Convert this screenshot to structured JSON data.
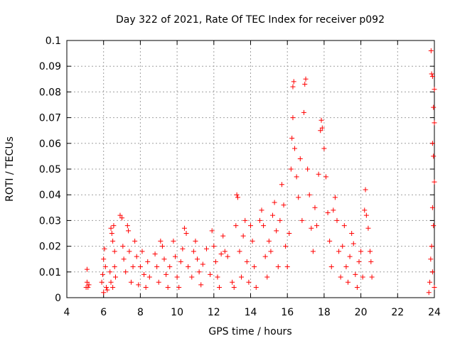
{
  "chart_data": {
    "type": "scatter",
    "title": "Day 322 of 2021, Rate Of TEC Index for receiver p092",
    "xlabel": "GPS time / hours",
    "ylabel": "ROTI / TECUs",
    "xlim": [
      4,
      24
    ],
    "ylim": [
      0,
      0.1
    ],
    "x_ticks": [
      4,
      6,
      8,
      10,
      12,
      14,
      16,
      18,
      20,
      22,
      24
    ],
    "x_tick_labels": [
      "4",
      "6",
      "8",
      "10",
      "12",
      "14",
      "16",
      "18",
      "20",
      "22",
      "24"
    ],
    "y_ticks": [
      0,
      0.01,
      0.02,
      0.03,
      0.04,
      0.05,
      0.06,
      0.07,
      0.08,
      0.09,
      0.1
    ],
    "y_tick_labels": [
      "0",
      "0.01",
      "0.02",
      "0.03",
      "0.04",
      "0.05",
      "0.06",
      "0.07",
      "0.08",
      "0.09",
      "0.1"
    ],
    "grid": true,
    "marker": "plus",
    "color": "#ff0000",
    "series": [
      {
        "name": "ROTI",
        "points": [
          [
            5.1,
            0.011
          ],
          [
            5.1,
            0.006
          ],
          [
            5.15,
            0.004
          ],
          [
            5.2,
            0.005
          ],
          [
            5.05,
            0.004
          ],
          [
            5.9,
            0.006
          ],
          [
            5.95,
            0.009
          ],
          [
            6.0,
            0.015
          ],
          [
            6.05,
            0.019
          ],
          [
            6.1,
            0.012
          ],
          [
            6.15,
            0.004
          ],
          [
            6.2,
            0.003
          ],
          [
            6.0,
            0.002
          ],
          [
            6.4,
            0.027
          ],
          [
            6.45,
            0.025
          ],
          [
            6.5,
            0.022
          ],
          [
            6.55,
            0.028
          ],
          [
            6.6,
            0.018
          ],
          [
            6.35,
            0.01
          ],
          [
            6.4,
            0.006
          ],
          [
            6.5,
            0.004
          ],
          [
            6.6,
            0.012
          ],
          [
            6.65,
            0.008
          ],
          [
            6.9,
            0.032
          ],
          [
            7.0,
            0.031
          ],
          [
            7.05,
            0.02
          ],
          [
            7.1,
            0.015
          ],
          [
            7.2,
            0.01
          ],
          [
            7.3,
            0.028
          ],
          [
            7.35,
            0.026
          ],
          [
            7.4,
            0.018
          ],
          [
            7.5,
            0.006
          ],
          [
            7.6,
            0.012
          ],
          [
            7.7,
            0.022
          ],
          [
            7.8,
            0.016
          ],
          [
            7.9,
            0.005
          ],
          [
            8.0,
            0.012
          ],
          [
            8.1,
            0.018
          ],
          [
            8.2,
            0.009
          ],
          [
            8.3,
            0.004
          ],
          [
            8.4,
            0.014
          ],
          [
            8.5,
            0.008
          ],
          [
            8.8,
            0.017
          ],
          [
            8.9,
            0.012
          ],
          [
            9.0,
            0.006
          ],
          [
            9.1,
            0.022
          ],
          [
            9.2,
            0.02
          ],
          [
            9.3,
            0.015
          ],
          [
            9.4,
            0.009
          ],
          [
            9.5,
            0.004
          ],
          [
            9.6,
            0.012
          ],
          [
            9.8,
            0.022
          ],
          [
            9.9,
            0.016
          ],
          [
            10.0,
            0.008
          ],
          [
            10.1,
            0.004
          ],
          [
            10.2,
            0.014
          ],
          [
            10.3,
            0.019
          ],
          [
            10.4,
            0.027
          ],
          [
            10.5,
            0.025
          ],
          [
            10.6,
            0.012
          ],
          [
            10.8,
            0.008
          ],
          [
            10.9,
            0.018
          ],
          [
            11.0,
            0.022
          ],
          [
            11.1,
            0.015
          ],
          [
            11.2,
            0.01
          ],
          [
            11.3,
            0.005
          ],
          [
            11.4,
            0.013
          ],
          [
            11.6,
            0.019
          ],
          [
            11.8,
            0.009
          ],
          [
            11.9,
            0.026
          ],
          [
            12.0,
            0.02
          ],
          [
            12.1,
            0.014
          ],
          [
            12.2,
            0.008
          ],
          [
            12.3,
            0.004
          ],
          [
            12.4,
            0.017
          ],
          [
            12.5,
            0.024
          ],
          [
            12.6,
            0.018
          ],
          [
            12.75,
            0.016
          ],
          [
            13.0,
            0.006
          ],
          [
            13.1,
            0.004
          ],
          [
            13.2,
            0.028
          ],
          [
            13.25,
            0.04
          ],
          [
            13.3,
            0.039
          ],
          [
            13.4,
            0.018
          ],
          [
            13.5,
            0.008
          ],
          [
            13.6,
            0.024
          ],
          [
            13.7,
            0.03
          ],
          [
            13.8,
            0.014
          ],
          [
            13.9,
            0.006
          ],
          [
            14.0,
            0.028
          ],
          [
            14.1,
            0.022
          ],
          [
            14.2,
            0.012
          ],
          [
            14.3,
            0.004
          ],
          [
            14.5,
            0.03
          ],
          [
            14.6,
            0.034
          ],
          [
            14.7,
            0.028
          ],
          [
            14.8,
            0.016
          ],
          [
            14.9,
            0.008
          ],
          [
            15.0,
            0.022
          ],
          [
            15.1,
            0.018
          ],
          [
            15.2,
            0.032
          ],
          [
            15.3,
            0.037
          ],
          [
            15.4,
            0.026
          ],
          [
            15.5,
            0.012
          ],
          [
            15.6,
            0.03
          ],
          [
            15.7,
            0.044
          ],
          [
            15.8,
            0.036
          ],
          [
            15.9,
            0.02
          ],
          [
            16.0,
            0.012
          ],
          [
            16.1,
            0.025
          ],
          [
            16.2,
            0.05
          ],
          [
            16.25,
            0.062
          ],
          [
            16.3,
            0.082
          ],
          [
            16.35,
            0.084
          ],
          [
            16.3,
            0.07
          ],
          [
            16.4,
            0.058
          ],
          [
            16.5,
            0.047
          ],
          [
            16.6,
            0.039
          ],
          [
            16.7,
            0.054
          ],
          [
            16.8,
            0.03
          ],
          [
            16.9,
            0.072
          ],
          [
            16.95,
            0.083
          ],
          [
            17.0,
            0.085
          ],
          [
            17.1,
            0.05
          ],
          [
            17.2,
            0.04
          ],
          [
            17.3,
            0.027
          ],
          [
            17.4,
            0.018
          ],
          [
            17.5,
            0.035
          ],
          [
            17.6,
            0.028
          ],
          [
            17.7,
            0.048
          ],
          [
            17.8,
            0.065
          ],
          [
            17.85,
            0.069
          ],
          [
            17.9,
            0.066
          ],
          [
            18.0,
            0.058
          ],
          [
            18.1,
            0.047
          ],
          [
            18.2,
            0.033
          ],
          [
            18.3,
            0.022
          ],
          [
            18.4,
            0.012
          ],
          [
            18.5,
            0.034
          ],
          [
            18.6,
            0.039
          ],
          [
            18.7,
            0.03
          ],
          [
            18.8,
            0.018
          ],
          [
            18.9,
            0.008
          ],
          [
            19.0,
            0.02
          ],
          [
            19.1,
            0.028
          ],
          [
            19.2,
            0.012
          ],
          [
            19.3,
            0.006
          ],
          [
            19.4,
            0.016
          ],
          [
            19.5,
            0.025
          ],
          [
            19.6,
            0.021
          ],
          [
            19.7,
            0.009
          ],
          [
            19.8,
            0.004
          ],
          [
            19.9,
            0.014
          ],
          [
            20.0,
            0.018
          ],
          [
            20.1,
            0.008
          ],
          [
            20.2,
            0.034
          ],
          [
            20.25,
            0.042
          ],
          [
            20.3,
            0.032
          ],
          [
            20.4,
            0.027
          ],
          [
            20.5,
            0.018
          ],
          [
            20.55,
            0.014
          ],
          [
            20.6,
            0.008
          ],
          [
            23.7,
            0.002
          ],
          [
            23.75,
            0.006
          ],
          [
            23.8,
            0.015
          ],
          [
            23.82,
            0.096
          ],
          [
            23.85,
            0.087
          ],
          [
            23.9,
            0.086
          ],
          [
            23.95,
            0.074
          ],
          [
            24.0,
            0.081
          ],
          [
            24.0,
            0.068
          ],
          [
            23.9,
            0.06
          ],
          [
            23.95,
            0.055
          ],
          [
            24.0,
            0.045
          ],
          [
            23.9,
            0.035
          ],
          [
            23.95,
            0.028
          ],
          [
            23.85,
            0.02
          ],
          [
            23.9,
            0.01
          ],
          [
            24.0,
            0.004
          ]
        ]
      }
    ]
  }
}
